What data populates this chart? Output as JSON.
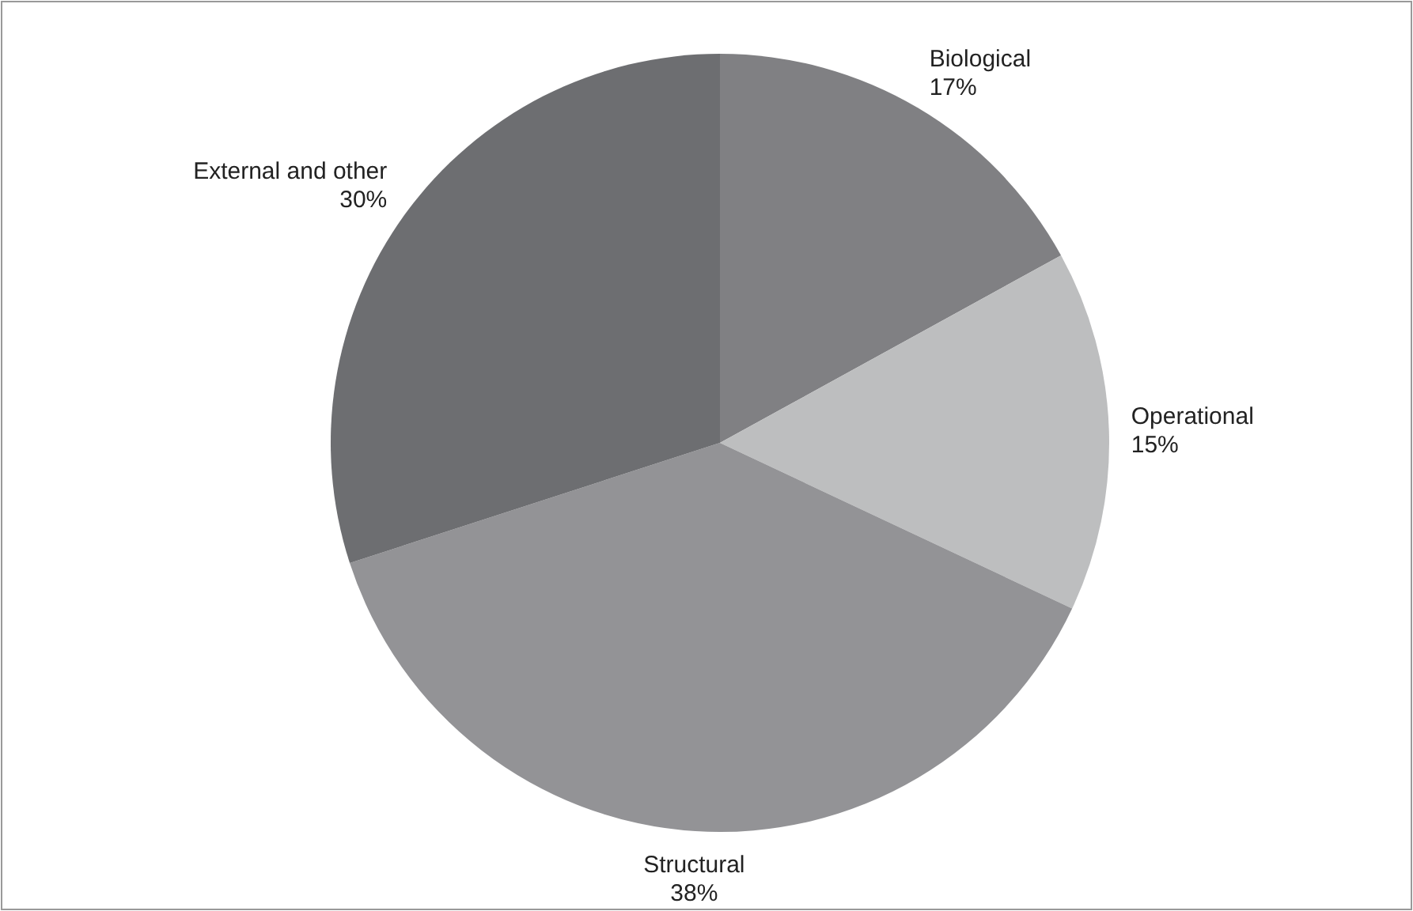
{
  "chart_data": {
    "type": "pie",
    "categories": [
      "Biological",
      "Operational",
      "Structural",
      "External and other"
    ],
    "values": [
      17,
      15,
      38,
      30
    ],
    "colors": [
      "#808083",
      "#bdbebf",
      "#939396",
      "#6d6e71"
    ],
    "value_labels": [
      "17%",
      "15%",
      "38%",
      "30%"
    ]
  }
}
